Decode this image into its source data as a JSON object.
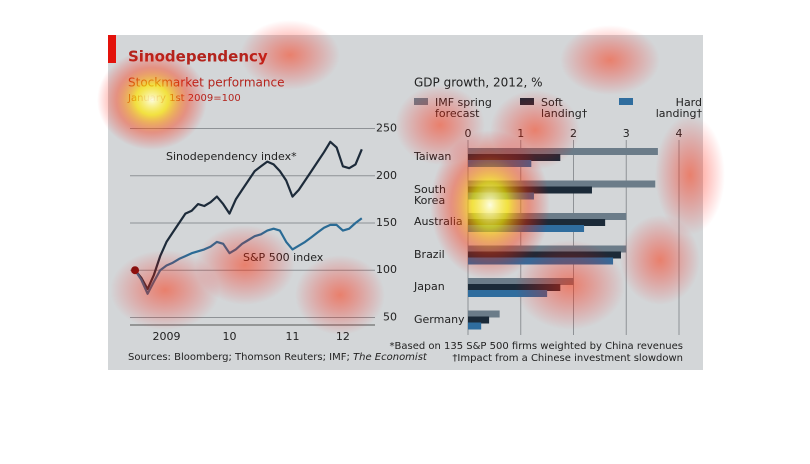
{
  "title": "Sinodependency",
  "sources": "Sources: Bloomberg; Thomson Reuters; IMF; ",
  "sources_italic": "The Economist",
  "footnotes": [
    "*Based on 135 S&P 500 firms weighted by China revenues",
    "†Impact from a Chinese investment slowdown"
  ],
  "chart_data": [
    {
      "type": "line",
      "title": "Stockmarket performance",
      "subtitle": "January 1st 2009=100",
      "x": [
        2009,
        2009.1,
        2009.2,
        2009.3,
        2009.4,
        2009.5,
        2009.6,
        2009.7,
        2009.8,
        2009.9,
        2010,
        2010.1,
        2010.2,
        2010.3,
        2010.4,
        2010.5,
        2010.6,
        2010.7,
        2010.8,
        2010.9,
        2011,
        2011.1,
        2011.2,
        2011.3,
        2011.4,
        2011.5,
        2011.6,
        2011.7,
        2011.8,
        2011.9,
        2012,
        2012.1,
        2012.2,
        2012.3,
        2012.4,
        2012.5,
        2012.6
      ],
      "series": [
        {
          "name": "Sinodependency index*",
          "color": "#1d2b3a",
          "values": [
            100,
            92,
            80,
            95,
            115,
            130,
            140,
            150,
            160,
            163,
            170,
            168,
            172,
            178,
            170,
            160,
            175,
            185,
            195,
            205,
            210,
            215,
            212,
            205,
            195,
            178,
            185,
            195,
            205,
            215,
            225,
            236,
            230,
            210,
            208,
            212,
            228
          ]
        },
        {
          "name": "S&P 500 index",
          "color": "#2a6b95",
          "values": [
            100,
            90,
            75,
            88,
            100,
            105,
            108,
            112,
            115,
            118,
            120,
            122,
            125,
            130,
            128,
            118,
            122,
            128,
            132,
            136,
            138,
            142,
            144,
            142,
            130,
            122,
            126,
            130,
            135,
            140,
            145,
            148,
            148,
            142,
            144,
            150,
            155
          ]
        }
      ],
      "xlim": [
        2008.92,
        2012.81
      ],
      "xticks": [
        {
          "value": 2009.5,
          "label": "2009"
        },
        {
          "value": 2010.5,
          "label": "10"
        },
        {
          "value": 2011.5,
          "label": "11"
        },
        {
          "value": 2012.3,
          "label": "12"
        }
      ],
      "ylim": [
        42,
        258
      ],
      "yticks": [
        50,
        100,
        150,
        200,
        250
      ],
      "grid": true
    },
    {
      "type": "bar",
      "orientation": "horizontal",
      "title": "GDP growth, 2012, %",
      "categories": [
        "Taiwan",
        "South Korea",
        "Australia",
        "Brazil",
        "Japan",
        "Germany"
      ],
      "series": [
        {
          "name": "IMF spring forecast",
          "color": "#6b7c89",
          "values": [
            3.6,
            3.55,
            3.0,
            3.0,
            2.0,
            0.6
          ]
        },
        {
          "name": "Soft landing†",
          "color": "#1b2a38",
          "values": [
            1.75,
            2.35,
            2.6,
            2.9,
            1.75,
            0.4
          ]
        },
        {
          "name": "Hard landing†",
          "color": "#2f6d9e",
          "values": [
            1.2,
            1.25,
            2.2,
            2.75,
            1.5,
            0.25
          ]
        }
      ],
      "xlim": [
        0,
        4
      ],
      "xticks": [
        0,
        1,
        2,
        3,
        4
      ],
      "grid": true
    }
  ]
}
